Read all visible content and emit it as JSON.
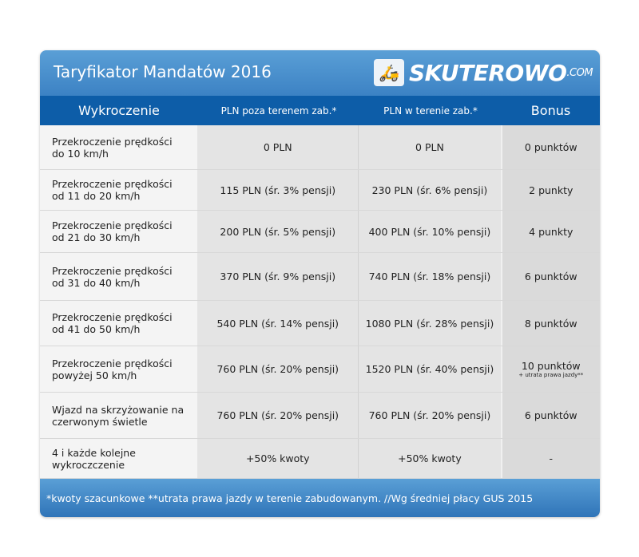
{
  "header": {
    "title": "Taryfikator Mandatów 2016",
    "logo": {
      "name": "SKUTEROWO",
      ".com": ".COM"
    }
  },
  "columns": [
    "Wykroczenie",
    "PLN poza terenem zab.*",
    "PLN w terenie zab.*",
    "Bonus"
  ],
  "rows": [
    {
      "offense": [
        "Przekroczenie prędkości",
        "do 10 km/h"
      ],
      "outside": "0 PLN",
      "inside": "0 PLN",
      "points": "0 punktów",
      "note": ""
    },
    {
      "offense": [
        "Przekroczenie prędkości",
        "od 11 do 20 km/h"
      ],
      "outside": "115 PLN (śr. 3% pensji)",
      "inside": "230 PLN (śr. 6% pensji)",
      "points": "2 punkty",
      "note": ""
    },
    {
      "offense": [
        "Przekroczenie prędkości",
        "od 21 do 30 km/h"
      ],
      "outside": "200 PLN (śr. 5% pensji)",
      "inside": "400 PLN (śr. 10% pensji)",
      "points": "4 punkty",
      "note": ""
    },
    {
      "offense": [
        "Przekroczenie prędkości",
        "od 31 do 40 km/h"
      ],
      "outside": "370 PLN (śr. 9% pensji)",
      "inside": "740 PLN (śr. 18% pensji)",
      "points": "6 punktów",
      "note": ""
    },
    {
      "offense": [
        "Przekroczenie prędkości",
        "od 41 do 50 km/h"
      ],
      "outside": "540 PLN (śr. 14% pensji)",
      "inside": "1080 PLN (śr. 28% pensji)",
      "points": "8 punktów",
      "note": ""
    },
    {
      "offense": [
        "Przekroczenie prędkości",
        "powyżej 50 km/h"
      ],
      "outside": "760 PLN (śr. 20% pensji)",
      "inside": "1520 PLN (śr. 40% pensji)",
      "points": "10 punktów",
      "note": "+ utrata prawa jazdy**"
    },
    {
      "offense": [
        "Wjazd na skrzyżowanie na",
        "czerwonym świetle"
      ],
      "outside": "760 PLN (śr. 20% pensji)",
      "inside": "760 PLN (śr. 20% pensji)",
      "points": "6 punktów",
      "note": ""
    },
    {
      "offense": [
        "4 i każde kolejne",
        "wykroczczenie"
      ],
      "outside": "+50% kwoty",
      "inside": "+50% kwoty",
      "points": "-",
      "note": ""
    }
  ],
  "footer": "*kwoty szacunkowe **utrata prawa jazdy w terenie zabudowanym. //Wg średniej płacy GUS 2015"
}
